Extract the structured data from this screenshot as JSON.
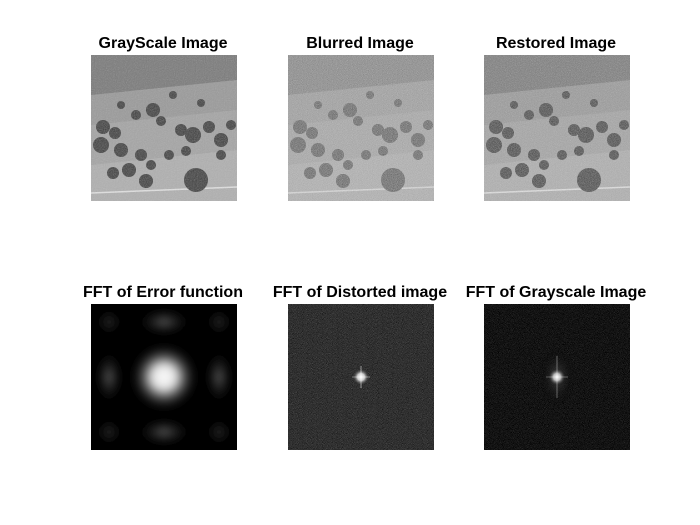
{
  "figure": {
    "background": "#ffffff",
    "panels": [
      {
        "title": "GrayScale Image",
        "kind": "landscape-grayscale"
      },
      {
        "title": "Blurred Image",
        "kind": "landscape-noisy"
      },
      {
        "title": "Restored Image",
        "kind": "landscape-restored"
      },
      {
        "title": "FFT of Error function",
        "kind": "fft-error-function"
      },
      {
        "title": "FFT of Distorted image",
        "kind": "fft-spectrum-noisy"
      },
      {
        "title": "FFT of Grayscale Image",
        "kind": "fft-spectrum-clean"
      }
    ]
  }
}
